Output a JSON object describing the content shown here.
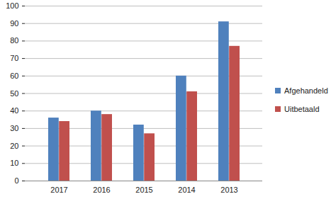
{
  "chart_data": {
    "type": "bar",
    "categories": [
      "2017",
      "2016",
      "2015",
      "2014",
      "2013"
    ],
    "series": [
      {
        "name": "Afgehandeld",
        "color": "#4f81bd",
        "values": [
          36,
          40,
          32,
          60,
          91
        ]
      },
      {
        "name": "Uitbetaald",
        "color": "#c0504d",
        "values": [
          34,
          38,
          27,
          51,
          77
        ]
      }
    ],
    "ylim": [
      0,
      100
    ],
    "yticks": [
      0,
      10,
      20,
      30,
      40,
      50,
      60,
      70,
      80,
      90,
      100
    ],
    "grid": true,
    "legend": "right"
  }
}
